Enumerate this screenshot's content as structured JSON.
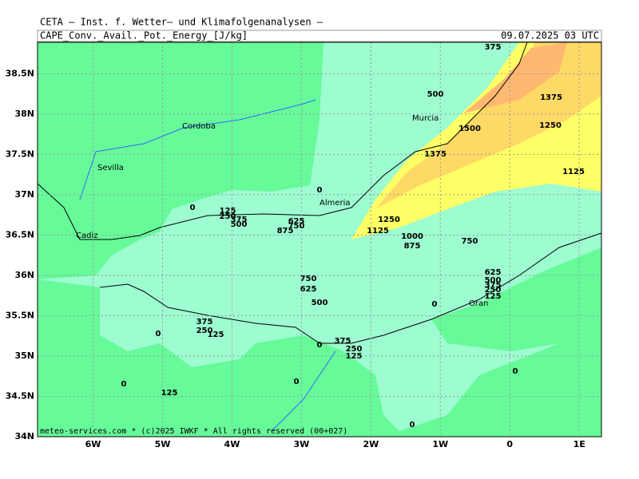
{
  "header": {
    "institute": "CETA – Inst. f. Wetter– und Klimafolgenanalysen –",
    "field": "CAPE_Conv._Avail._Pot._Energy_[J/kg]",
    "datetime": "09.07.2025 03 UTC"
  },
  "map": {
    "xlim": [
      -6.8,
      1.32
    ],
    "ylim": [
      34,
      38.89
    ],
    "xticks": [
      {
        "value": -6,
        "label": "6W"
      },
      {
        "value": -5,
        "label": "5W"
      },
      {
        "value": -4,
        "label": "4W"
      },
      {
        "value": -3,
        "label": "3W"
      },
      {
        "value": -2,
        "label": "2W"
      },
      {
        "value": -1,
        "label": "1W"
      },
      0,
      {
        "value": 1,
        "label": "1E"
      }
    ],
    "yticks": [
      {
        "value": 34,
        "label": "34N"
      },
      {
        "value": 34.5,
        "label": "34.5N"
      },
      {
        "value": 35,
        "label": "35N"
      },
      {
        "value": 35.5,
        "label": "35.5N"
      },
      {
        "value": 36,
        "label": "36N"
      },
      {
        "value": 36.5,
        "label": "36.5N"
      },
      {
        "value": 37,
        "label": "37N"
      },
      {
        "value": 37.5,
        "label": "37.5N"
      },
      {
        "value": 38,
        "label": "38N"
      },
      {
        "value": 38.5,
        "label": "38.5N"
      }
    ],
    "cities": [
      "Cordoba",
      "Sevilla",
      "Almeria",
      "Murcia",
      "Cadiz",
      "Oran"
    ],
    "contour_labels": [
      375,
      500,
      1375,
      1500,
      1250,
      1375,
      1125,
      0,
      0,
      125,
      250,
      375,
      500,
      625,
      750,
      875,
      1250,
      1125,
      1000,
      875,
      750,
      625,
      500,
      375,
      250,
      125,
      750,
      625,
      500,
      0,
      375,
      250,
      125,
      0,
      0,
      375,
      250,
      125,
      0,
      0,
      0,
      125,
      0
    ],
    "footer": "meteo-services.com * (c)2025 IWKF * All rights reserved (00+027)"
  }
}
